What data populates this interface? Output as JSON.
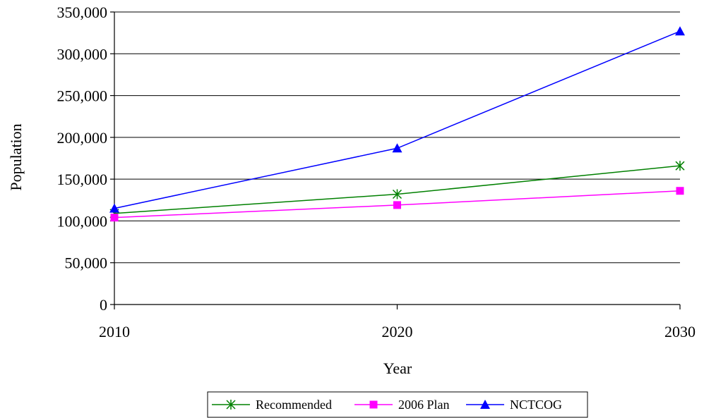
{
  "chart_data": {
    "type": "line",
    "title": "",
    "xlabel": "Year",
    "ylabel": "Population",
    "x": [
      2010,
      2020,
      2030
    ],
    "x_tick_labels": [
      "2010",
      "2020",
      "2030"
    ],
    "ylim": [
      0,
      350000
    ],
    "y_ticks": [
      0,
      50000,
      100000,
      150000,
      200000,
      250000,
      300000,
      350000
    ],
    "y_tick_labels": [
      "0",
      "50,000",
      "100,000",
      "150,000",
      "200,000",
      "250,000",
      "300,000",
      "350,000"
    ],
    "grid": "horizontal",
    "legend_position": "bottom",
    "series": [
      {
        "name": "Recommended",
        "values": [
          109000,
          132000,
          166000
        ],
        "color": "#008000",
        "marker": "asterisk"
      },
      {
        "name": "2006 Plan",
        "values": [
          104000,
          119000,
          136000
        ],
        "color": "#ff00ff",
        "marker": "square"
      },
      {
        "name": "NCTCOG",
        "values": [
          115000,
          187000,
          327000
        ],
        "color": "#0000ff",
        "marker": "triangle"
      }
    ]
  }
}
